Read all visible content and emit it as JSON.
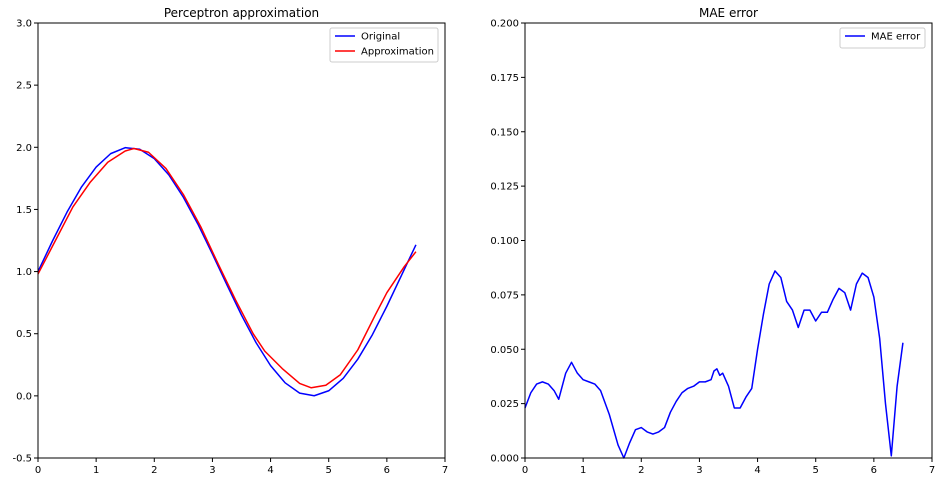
{
  "chart_data": [
    {
      "type": "line",
      "title": "Perceptron approximation",
      "xlabel": "",
      "ylabel": "",
      "xlim": [
        0,
        7
      ],
      "ylim": [
        -0.5,
        3.0
      ],
      "xticks": [
        0,
        1,
        2,
        3,
        4,
        5,
        6,
        7
      ],
      "yticks": [
        -0.5,
        0.0,
        0.5,
        1.0,
        1.5,
        2.0,
        2.5,
        3.0
      ],
      "ytick_format": 1,
      "grid": false,
      "legend_position": "top-right",
      "series": [
        {
          "name": "Original",
          "color": "#0000ff",
          "x": [
            0,
            0.25,
            0.5,
            0.75,
            1.0,
            1.25,
            1.5,
            1.75,
            2.0,
            2.25,
            2.5,
            2.75,
            3.0,
            3.25,
            3.5,
            3.75,
            4.0,
            4.25,
            4.5,
            4.75,
            5.0,
            5.25,
            5.5,
            5.75,
            6.0,
            6.25,
            6.5
          ],
          "y": [
            1.0,
            1.247,
            1.479,
            1.682,
            1.841,
            1.949,
            1.997,
            1.984,
            1.909,
            1.778,
            1.598,
            1.382,
            1.141,
            0.892,
            0.649,
            0.428,
            0.243,
            0.105,
            0.022,
            0.001,
            0.041,
            0.141,
            0.295,
            0.491,
            0.721,
            0.968,
            1.215
          ]
        },
        {
          "name": "Approximation",
          "color": "#ff0000",
          "x": [
            0,
            0.3,
            0.6,
            0.9,
            1.2,
            1.5,
            1.65,
            1.9,
            2.2,
            2.5,
            2.8,
            3.1,
            3.4,
            3.7,
            3.9,
            4.2,
            4.5,
            4.7,
            4.95,
            5.2,
            5.5,
            5.8,
            6.0,
            6.3,
            6.5
          ],
          "y": [
            0.98,
            1.25,
            1.52,
            1.72,
            1.88,
            1.97,
            1.99,
            1.96,
            1.83,
            1.62,
            1.36,
            1.06,
            0.77,
            0.5,
            0.36,
            0.22,
            0.1,
            0.065,
            0.085,
            0.17,
            0.37,
            0.65,
            0.83,
            1.04,
            1.16
          ]
        }
      ]
    },
    {
      "type": "line",
      "title": "MAE error",
      "xlabel": "",
      "ylabel": "",
      "xlim": [
        0,
        7
      ],
      "ylim": [
        0.0,
        0.2
      ],
      "xticks": [
        0,
        1,
        2,
        3,
        4,
        5,
        6,
        7
      ],
      "yticks": [
        0.0,
        0.025,
        0.05,
        0.075,
        0.1,
        0.125,
        0.15,
        0.175,
        0.2
      ],
      "ytick_format": 3,
      "grid": false,
      "legend_position": "top-right",
      "series": [
        {
          "name": "MAE error",
          "color": "#0000ff",
          "x": [
            0,
            0.1,
            0.2,
            0.3,
            0.4,
            0.5,
            0.58,
            0.7,
            0.8,
            0.9,
            1.0,
            1.1,
            1.2,
            1.3,
            1.45,
            1.6,
            1.7,
            1.8,
            1.9,
            2.0,
            2.1,
            2.2,
            2.3,
            2.4,
            2.5,
            2.6,
            2.7,
            2.8,
            2.9,
            3.0,
            3.1,
            3.2,
            3.25,
            3.3,
            3.35,
            3.4,
            3.5,
            3.6,
            3.7,
            3.8,
            3.9,
            4.0,
            4.1,
            4.2,
            4.3,
            4.4,
            4.5,
            4.6,
            4.7,
            4.8,
            4.9,
            5.0,
            5.1,
            5.2,
            5.3,
            5.4,
            5.5,
            5.6,
            5.7,
            5.8,
            5.9,
            6.0,
            6.1,
            6.2,
            6.3,
            6.4,
            6.5
          ],
          "y": [
            0.023,
            0.03,
            0.034,
            0.035,
            0.034,
            0.031,
            0.027,
            0.039,
            0.044,
            0.039,
            0.036,
            0.035,
            0.034,
            0.031,
            0.02,
            0.006,
            0.0,
            0.007,
            0.013,
            0.014,
            0.012,
            0.011,
            0.012,
            0.014,
            0.021,
            0.026,
            0.03,
            0.032,
            0.033,
            0.035,
            0.035,
            0.036,
            0.04,
            0.041,
            0.038,
            0.039,
            0.033,
            0.023,
            0.023,
            0.028,
            0.032,
            0.05,
            0.066,
            0.08,
            0.086,
            0.083,
            0.072,
            0.068,
            0.06,
            0.068,
            0.068,
            0.063,
            0.067,
            0.067,
            0.073,
            0.078,
            0.076,
            0.068,
            0.08,
            0.085,
            0.083,
            0.074,
            0.055,
            0.025,
            0.001,
            0.033,
            0.053
          ]
        }
      ]
    }
  ]
}
